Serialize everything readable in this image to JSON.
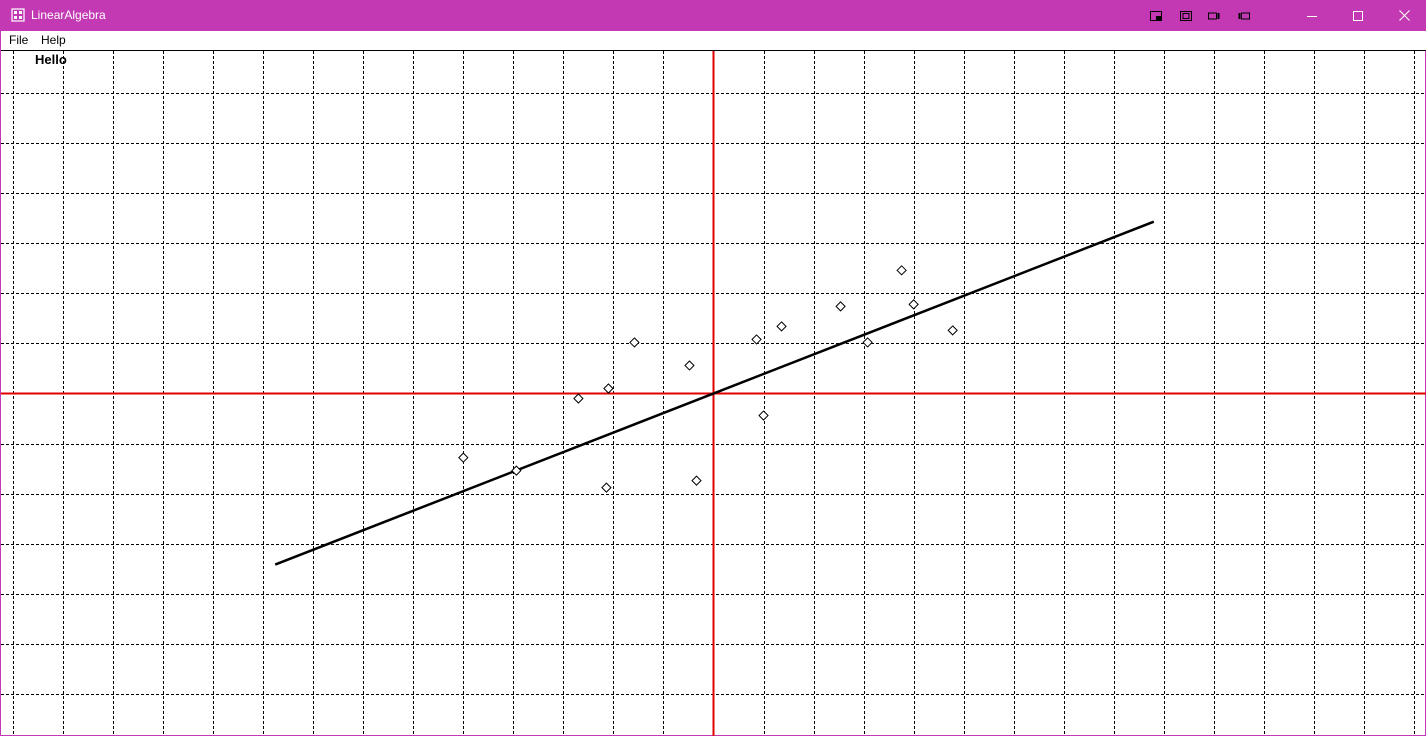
{
  "window": {
    "title": "LinearAlgebra",
    "title_bar_color": "#c239b3",
    "icons": {
      "app": "calculator-grid-icon",
      "tool1": "layout-icon-1",
      "tool2": "layout-icon-2",
      "tool3": "layout-icon-3",
      "tool4": "layout-icon-4",
      "minimize": "minimize-icon",
      "maximize": "maximize-icon",
      "close": "close-icon"
    }
  },
  "menu": {
    "items": [
      {
        "label": "File"
      },
      {
        "label": "Help"
      }
    ]
  },
  "canvas": {
    "label": "Hello"
  },
  "chart_data": {
    "type": "scatter",
    "title": "",
    "xlabel": "",
    "ylabel": "",
    "grid": true,
    "axis_color": "#e00000",
    "xlim": [
      -14.24,
      14.26
    ],
    "ylim": [
      -6.84,
      6.84
    ],
    "points": [
      {
        "x": -5.0,
        "y": -1.28
      },
      {
        "x": -3.94,
        "y": -1.54
      },
      {
        "x": -2.7,
        "y": -0.1
      },
      {
        "x": -2.14,
        "y": -1.88
      },
      {
        "x": -2.1,
        "y": 0.1
      },
      {
        "x": -1.58,
        "y": 1.02
      },
      {
        "x": -0.48,
        "y": 0.56
      },
      {
        "x": -0.34,
        "y": -1.74
      },
      {
        "x": 0.86,
        "y": 1.08
      },
      {
        "x": 1.0,
        "y": -0.44
      },
      {
        "x": 1.36,
        "y": 1.34
      },
      {
        "x": 2.54,
        "y": 1.74
      },
      {
        "x": 3.08,
        "y": 1.02
      },
      {
        "x": 3.76,
        "y": 2.46
      },
      {
        "x": 4.0,
        "y": 1.78
      },
      {
        "x": 4.78,
        "y": 1.26
      }
    ],
    "regression_line": {
      "slope": 0.39,
      "intercept": 0,
      "x_start": -8.76,
      "x_end": 8.8
    }
  }
}
